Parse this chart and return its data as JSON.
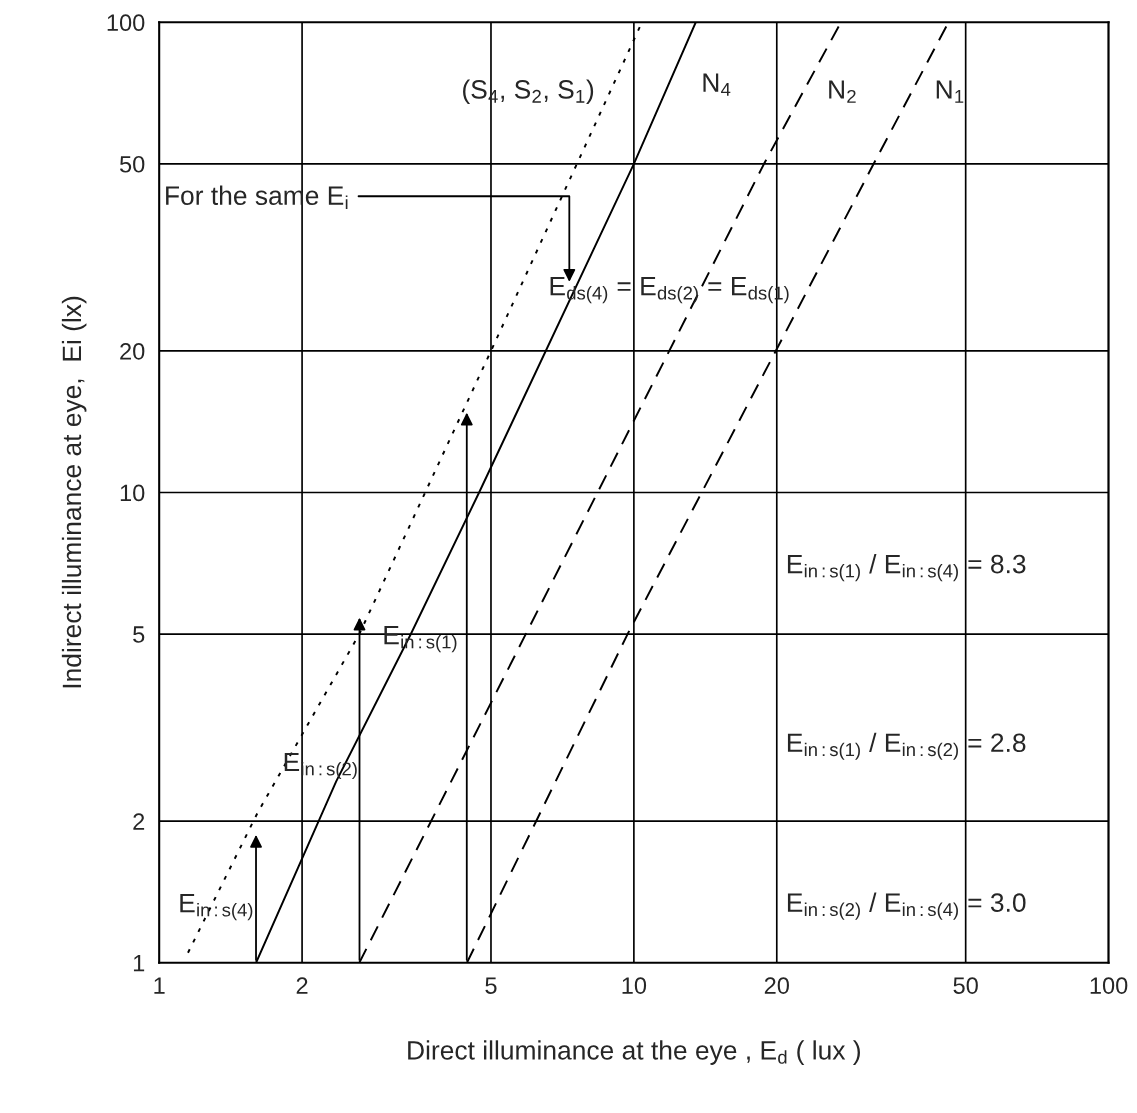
{
  "chart_data": {
    "type": "line",
    "xlabel": "Direct illuminance at the eye , E$_{d}$ ( lux )",
    "ylabel": "Indirect illuminance at eye,  Ei (lx)",
    "xlim": [
      1,
      100
    ],
    "ylim": [
      1,
      100
    ],
    "xticks": [
      1,
      2,
      5,
      10,
      20,
      50,
      100
    ],
    "yticks": [
      1,
      2,
      5,
      10,
      20,
      50,
      100
    ],
    "log": "xy",
    "grid": true,
    "legend": false,
    "series": [
      {
        "name": "(S$_{4}$, S$_{2}$, S$_{1}$)",
        "color": "#000000",
        "line_style": "dotted",
        "x": [
          1.15,
          1.61,
          2.64,
          5,
          10.4
        ],
        "values": [
          1.05,
          2.08,
          5,
          20,
          100
        ]
      },
      {
        "name": "N$_{4}$",
        "color": "#000000",
        "line_style": "solid",
        "x": [
          1.6,
          2.36,
          3.39,
          4.72,
          10,
          13.5
        ],
        "values": [
          1,
          2.43,
          5,
          10,
          50,
          100
        ]
      },
      {
        "name": "N$_{2}$",
        "color": "#000000",
        "line_style": "dashed",
        "x": [
          2.64,
          18.8,
          27.3
        ],
        "values": [
          1,
          50,
          100
        ]
      },
      {
        "name": "N$_{1}$",
        "color": "#000000",
        "line_style": "dashed",
        "x": [
          4.45,
          9.7,
          32,
          46
        ],
        "values": [
          1,
          5,
          50,
          100
        ]
      }
    ],
    "annotations": [
      "E$_{in:s(4)}$",
      "E$_{in:s(2)}$",
      "E$_{in:s(1)}$",
      "For the same E$_{i}$",
      "E$_{ds(4)}$ = E$_{ds(2)}$ = E$_{ds(1)}$",
      "E$_{in:s(1)}$ / E$_{in:s(4)}$ = 8.3",
      "E$_{in:s(1)}$ / E$_{in:s(2)}$ = 2.8",
      "E$_{in:s(2)}$ / E$_{in:s(4)}$ = 3.0"
    ]
  }
}
